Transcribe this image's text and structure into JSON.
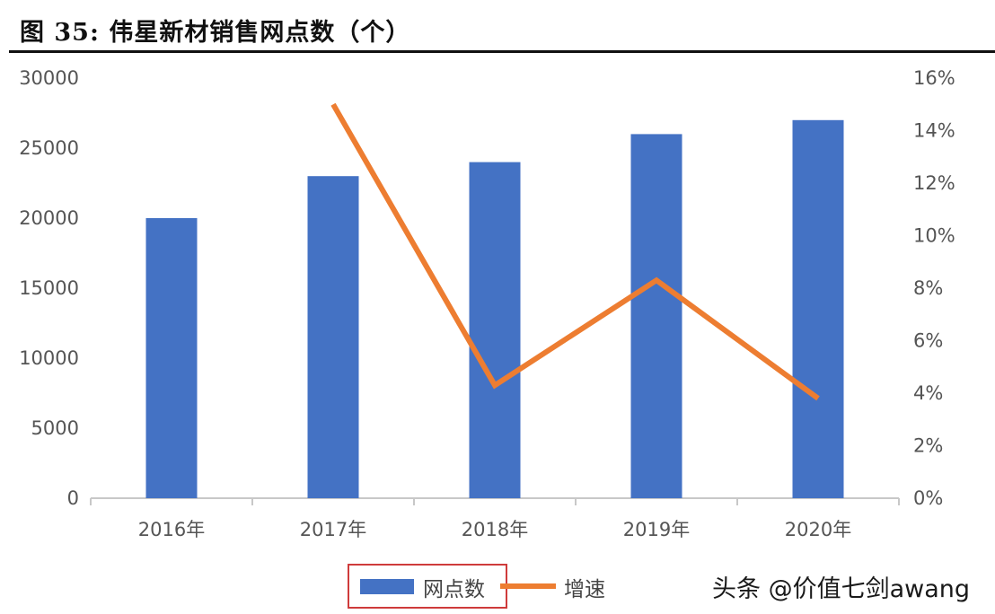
{
  "title": "图  35:  伟星新材销售网点数（个）",
  "watermark": "头条 @价值七剑awang",
  "colors": {
    "bar": "#4472c4",
    "line": "#ed7d31",
    "legend_border": "#cf3b3b"
  },
  "chart_data": {
    "type": "bar",
    "categories": [
      "2016年",
      "2017年",
      "2018年",
      "2019年",
      "2020年"
    ],
    "series": [
      {
        "name": "网点数",
        "type": "bar",
        "axis": "left",
        "values": [
          20000,
          23000,
          24000,
          26000,
          27000
        ]
      },
      {
        "name": "增速",
        "type": "line",
        "axis": "right",
        "values": [
          null,
          0.15,
          0.043,
          0.083,
          0.038
        ]
      }
    ],
    "y_left": {
      "range": [
        0,
        30000
      ],
      "ticks": [
        "0",
        "5000",
        "10000",
        "15000",
        "20000",
        "25000",
        "30000"
      ]
    },
    "y_right": {
      "range": [
        0,
        0.16
      ],
      "ticks": [
        "0%",
        "2%",
        "4%",
        "6%",
        "8%",
        "10%",
        "12%",
        "14%",
        "16%"
      ]
    },
    "grid": false,
    "legend": "bottom"
  }
}
